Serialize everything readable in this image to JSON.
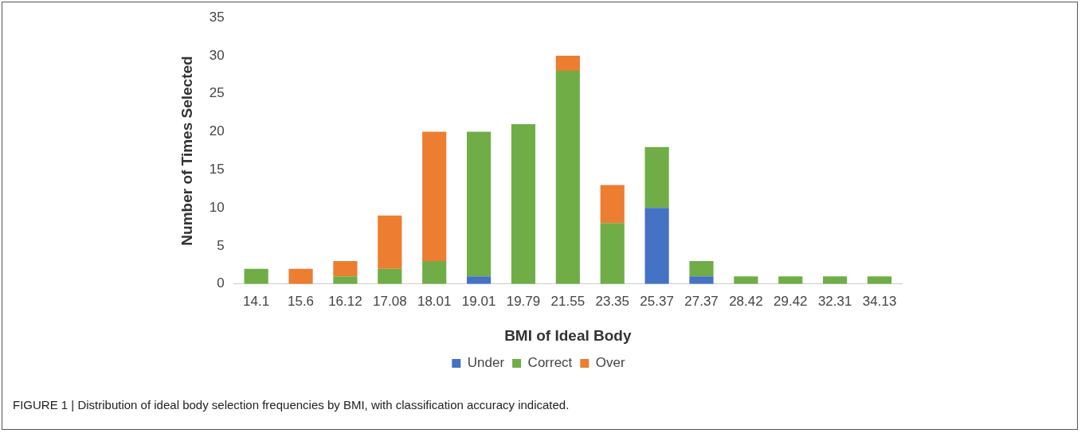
{
  "chart_data": {
    "type": "bar",
    "stacked": true,
    "xlabel": "BMI of Ideal Body",
    "ylabel": "Number of Times Selected",
    "categories": [
      "14.1",
      "15.6",
      "16.12",
      "17.08",
      "18.01",
      "19.01",
      "19.79",
      "21.55",
      "23.35",
      "25.37",
      "27.37",
      "28.42",
      "29.42",
      "32.31",
      "34.13"
    ],
    "series": [
      {
        "name": "Under",
        "color": "#4472c4",
        "values": [
          0,
          0,
          0,
          0,
          0,
          1,
          0,
          0,
          0,
          10,
          1,
          0,
          0,
          0,
          0
        ]
      },
      {
        "name": "Correct",
        "color": "#70ad47",
        "values": [
          2,
          0,
          1,
          2,
          3,
          19,
          21,
          28,
          8,
          8,
          2,
          1,
          1,
          1,
          1
        ]
      },
      {
        "name": "Over",
        "color": "#ed7d31",
        "values": [
          0,
          2,
          2,
          7,
          17,
          0,
          0,
          2,
          5,
          0,
          0,
          0,
          0,
          0,
          0
        ]
      }
    ],
    "ylim": [
      0,
      35
    ],
    "yticks": [
      0,
      5,
      10,
      15,
      20,
      25,
      30,
      35
    ],
    "grid": false,
    "legend": "bottom",
    "annotations": [
      "FIGURE 1 | Distribution of ideal body selection frequencies by BMI, with classification accuracy indicated."
    ]
  }
}
